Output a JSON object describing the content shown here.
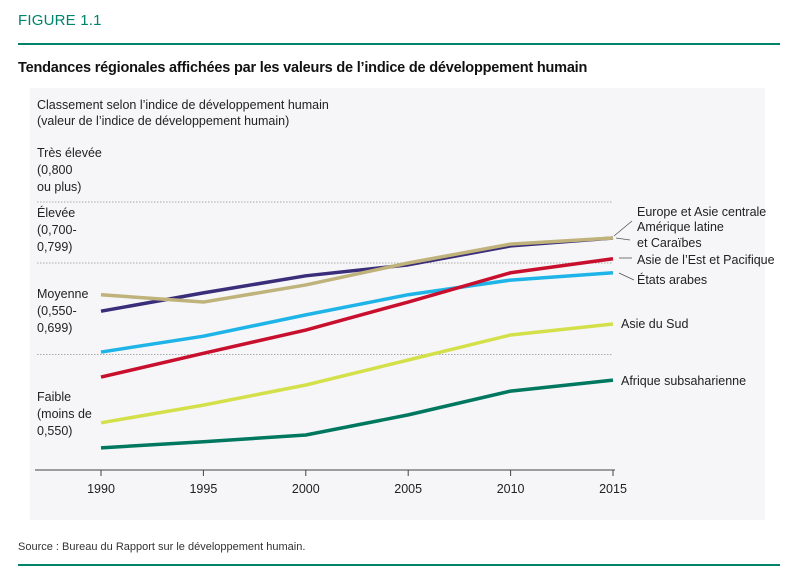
{
  "figure_label": "FIGURE 1.1",
  "title": "Tendances régionales affichées par les valeurs de l’indice de développement humain",
  "source": "Source : Bureau du Rapport sur le développement humain.",
  "colors": {
    "accent": "#00836b",
    "europe": "#bfb27a",
    "latam": "#3a2d7a",
    "east_asia": "#c8102e",
    "arab": "#1fb4e8",
    "south_asia": "#d4e04a",
    "ssa": "#00775f"
  },
  "chart_data": {
    "type": "line",
    "ylabel": [
      "Classement selon l’indice de développement humain",
      "(valeur de l’indice de développement humain)"
    ],
    "x": [
      1990,
      1995,
      2000,
      2005,
      2010,
      2015
    ],
    "x_tick_labels": [
      "1990",
      "1995",
      "2000",
      "2005",
      "2010",
      "2015"
    ],
    "ylim": [
      0.36,
      0.86
    ],
    "grid_thresholds": [
      0.55,
      0.7,
      0.8
    ],
    "categories_bands": [
      {
        "lines": [
          "Très élevée",
          "(0,800",
          "ou plus)"
        ]
      },
      {
        "lines": [
          "Élevée",
          "(0,700-",
          "0,799)"
        ]
      },
      {
        "lines": [
          "Moyenne",
          "(0,550-",
          "0,699)"
        ]
      },
      {
        "lines": [
          "Faible",
          "(moins de",
          "0,550)"
        ]
      }
    ],
    "series": [
      {
        "name": "Europe et Asie centrale",
        "color_key": "europe",
        "values": [
          0.648,
          0.636,
          0.664,
          0.7,
          0.731,
          0.741
        ]
      },
      {
        "name": "Amérique latine et Caraïbes",
        "label_lines": [
          "Amérique latine",
          "et Caraïbes"
        ],
        "color_key": "latam",
        "values": [
          0.621,
          0.651,
          0.679,
          0.697,
          0.728,
          0.741
        ]
      },
      {
        "name": "Asie de l’Est et Pacifique",
        "color_key": "east_asia",
        "values": [
          0.513,
          0.552,
          0.59,
          0.636,
          0.684,
          0.707
        ]
      },
      {
        "name": "États arabes",
        "color_key": "arab",
        "values": [
          0.554,
          0.58,
          0.615,
          0.648,
          0.672,
          0.684
        ]
      },
      {
        "name": "Asie du Sud",
        "color_key": "south_asia",
        "values": [
          0.438,
          0.467,
          0.5,
          0.541,
          0.582,
          0.6
        ]
      },
      {
        "name": "Afrique subsaharienne",
        "color_key": "ssa",
        "values": [
          0.397,
          0.407,
          0.418,
          0.451,
          0.49,
          0.508
        ]
      }
    ]
  }
}
